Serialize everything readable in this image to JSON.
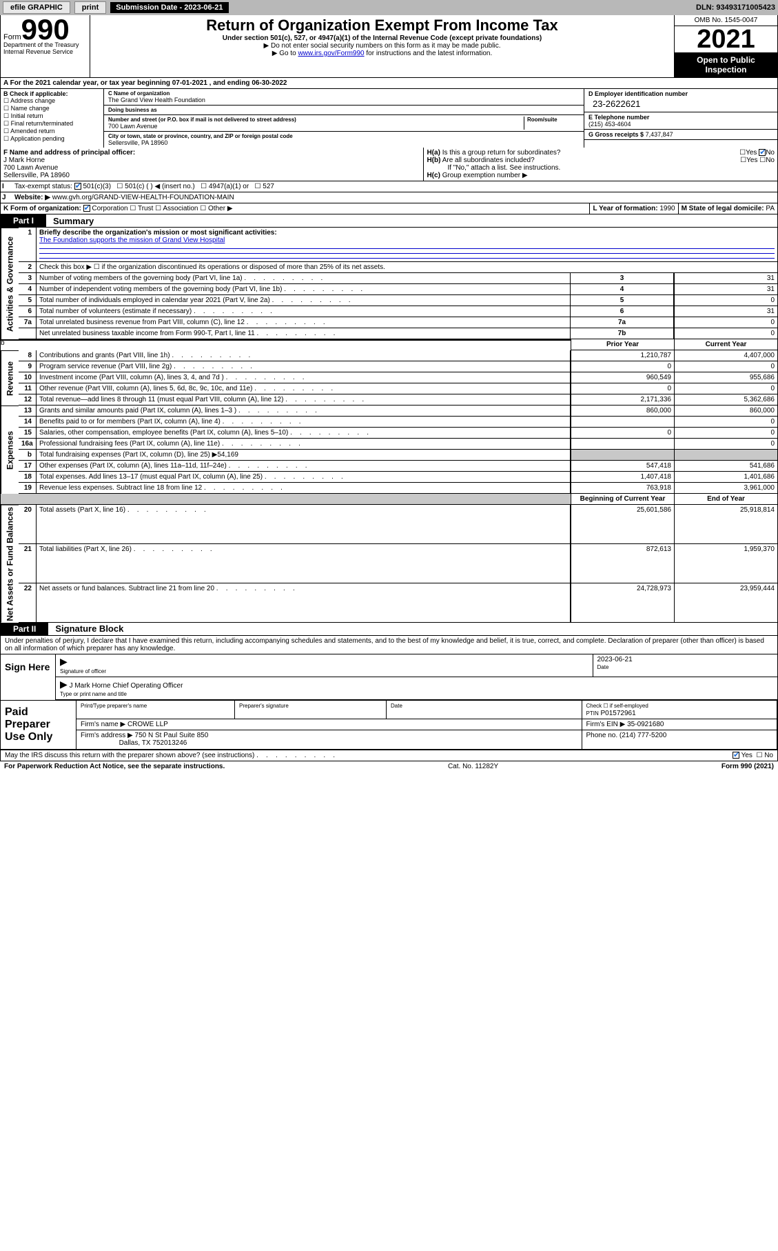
{
  "topbar": {
    "efile": "efile GRAPHIC",
    "print": "print",
    "subdate_label": "Submission Date - 2023-06-21",
    "dln": "DLN: 93493171005423"
  },
  "header": {
    "form_word": "Form",
    "form_num": "990",
    "title": "Return of Organization Exempt From Income Tax",
    "subtitle": "Under section 501(c), 527, or 4947(a)(1) of the Internal Revenue Code (except private foundations)",
    "note1": "▶ Do not enter social security numbers on this form as it may be made public.",
    "note2_pre": "▶ Go to ",
    "note2_link": "www.irs.gov/Form990",
    "note2_post": " for instructions and the latest information.",
    "dept": "Department of the Treasury Internal Revenue Service",
    "omb": "OMB No. 1545-0047",
    "year": "2021",
    "public": "Open to Public Inspection"
  },
  "rowA": "A For the 2021 calendar year, or tax year beginning 07-01-2021   , and ending 06-30-2022",
  "boxB": {
    "title": "B Check if applicable:",
    "items": [
      "Address change",
      "Name change",
      "Initial return",
      "Final return/terminated",
      "Amended return",
      "Application pending"
    ]
  },
  "boxC": {
    "name_lbl": "C Name of organization",
    "name": "The Grand View Health Foundation",
    "dba_lbl": "Doing business as",
    "dba": "",
    "street_lbl": "Number and street (or P.O. box if mail is not delivered to street address)",
    "room_lbl": "Room/suite",
    "street": "700 Lawn Avenue",
    "city_lbl": "City or town, state or province, country, and ZIP or foreign postal code",
    "city": "Sellersville, PA  18960"
  },
  "boxD": {
    "ein_lbl": "D Employer identification number",
    "ein": "23-2622621",
    "tel_lbl": "E Telephone number",
    "tel": "(215) 453-4604",
    "gross_lbl": "G Gross receipts $",
    "gross": "7,437,847"
  },
  "boxF": {
    "lbl": "F Name and address of principal officer:",
    "name": "J Mark Horne",
    "addr1": "700 Lawn Avenue",
    "addr2": "Sellersville, PA  18960"
  },
  "boxH": {
    "a": "Is this a group return for subordinates?",
    "b": "Are all subordinates included?",
    "b2": "If \"No,\" attach a list. See instructions.",
    "c": "Group exemption number ▶"
  },
  "boxI": {
    "lbl": "Tax-exempt status:",
    "opts": [
      "501(c)(3)",
      "501(c) (  ) ◀ (insert no.)",
      "4947(a)(1) or",
      "527"
    ]
  },
  "boxJ": {
    "lbl": "Website: ▶",
    "val": "www.gvh.org/GRAND-VIEW-HEALTH-FOUNDATION-MAIN"
  },
  "boxK": {
    "lbl": "K Form of organization:",
    "opts": [
      "Corporation",
      "Trust",
      "Association",
      "Other ▶"
    ]
  },
  "boxL": {
    "lbl": "L Year of formation:",
    "val": "1990"
  },
  "boxM": {
    "lbl": "M State of legal domicile:",
    "val": "PA"
  },
  "partI": {
    "tab": "Part I",
    "title": "Summary",
    "line1_lbl": "Briefly describe the organization's mission or most significant activities:",
    "line1_val": "The Foundation supports the mission of Grand View Hospital",
    "line2": "Check this box ▶ ☐  if the organization discontinued its operations or disposed of more than 25% of its net assets.",
    "rows_gov": [
      {
        "n": "3",
        "d": "Number of voting members of the governing body (Part VI, line 1a)",
        "box": "3",
        "v": "31"
      },
      {
        "n": "4",
        "d": "Number of independent voting members of the governing body (Part VI, line 1b)",
        "box": "4",
        "v": "31"
      },
      {
        "n": "5",
        "d": "Total number of individuals employed in calendar year 2021 (Part V, line 2a)",
        "box": "5",
        "v": "0"
      },
      {
        "n": "6",
        "d": "Total number of volunteers (estimate if necessary)",
        "box": "6",
        "v": "31"
      },
      {
        "n": "7a",
        "d": "Total unrelated business revenue from Part VIII, column (C), line 12",
        "box": "7a",
        "v": "0"
      },
      {
        "n": "",
        "d": "Net unrelated business taxable income from Form 990-T, Part I, line 11",
        "box": "7b",
        "v": "0"
      }
    ],
    "col_prior": "Prior Year",
    "col_curr": "Current Year",
    "rows_rev": [
      {
        "n": "8",
        "d": "Contributions and grants (Part VIII, line 1h)",
        "p": "1,210,787",
        "c": "4,407,000"
      },
      {
        "n": "9",
        "d": "Program service revenue (Part VIII, line 2g)",
        "p": "0",
        "c": "0"
      },
      {
        "n": "10",
        "d": "Investment income (Part VIII, column (A), lines 3, 4, and 7d )",
        "p": "960,549",
        "c": "955,686"
      },
      {
        "n": "11",
        "d": "Other revenue (Part VIII, column (A), lines 5, 6d, 8c, 9c, 10c, and 11e)",
        "p": "0",
        "c": "0"
      },
      {
        "n": "12",
        "d": "Total revenue—add lines 8 through 11 (must equal Part VIII, column (A), line 12)",
        "p": "2,171,336",
        "c": "5,362,686"
      }
    ],
    "rows_exp": [
      {
        "n": "13",
        "d": "Grants and similar amounts paid (Part IX, column (A), lines 1–3 )",
        "p": "860,000",
        "c": "860,000"
      },
      {
        "n": "14",
        "d": "Benefits paid to or for members (Part IX, column (A), line 4)",
        "p": "",
        "c": "0"
      },
      {
        "n": "15",
        "d": "Salaries, other compensation, employee benefits (Part IX, column (A), lines 5–10)",
        "p": "0",
        "c": "0"
      },
      {
        "n": "16a",
        "d": "Professional fundraising fees (Part IX, column (A), line 11e)",
        "p": "",
        "c": "0"
      },
      {
        "n": "b",
        "d": "Total fundraising expenses (Part IX, column (D), line 25) ▶54,169",
        "p": "",
        "c": "",
        "shade": true
      },
      {
        "n": "17",
        "d": "Other expenses (Part IX, column (A), lines 11a–11d, 11f–24e)",
        "p": "547,418",
        "c": "541,686"
      },
      {
        "n": "18",
        "d": "Total expenses. Add lines 13–17 (must equal Part IX, column (A), line 25)",
        "p": "1,407,418",
        "c": "1,401,686"
      },
      {
        "n": "19",
        "d": "Revenue less expenses. Subtract line 18 from line 12",
        "p": "763,918",
        "c": "3,961,000"
      }
    ],
    "col_beg": "Beginning of Current Year",
    "col_end": "End of Year",
    "rows_net": [
      {
        "n": "20",
        "d": "Total assets (Part X, line 16)",
        "p": "25,601,586",
        "c": "25,918,814"
      },
      {
        "n": "21",
        "d": "Total liabilities (Part X, line 26)",
        "p": "872,613",
        "c": "1,959,370"
      },
      {
        "n": "22",
        "d": "Net assets or fund balances. Subtract line 21 from line 20",
        "p": "24,728,973",
        "c": "23,959,444"
      }
    ],
    "side_gov": "Activities & Governance",
    "side_rev": "Revenue",
    "side_exp": "Expenses",
    "side_net": "Net Assets or Fund Balances"
  },
  "partII": {
    "tab": "Part II",
    "title": "Signature Block",
    "intro": "Under penalties of perjury, I declare that I have examined this return, including accompanying schedules and statements, and to the best of my knowledge and belief, it is true, correct, and complete. Declaration of preparer (other than officer) is based on all information of which preparer has any knowledge.",
    "sign_here": "Sign Here",
    "sig_off": "Signature of officer",
    "sig_date": "2023-06-21",
    "date_lbl": "Date",
    "officer": "J Mark Horne  Chief Operating Officer",
    "officer_lbl": "Type or print name and title",
    "paid": "Paid Preparer Use Only",
    "p_name_lbl": "Print/Type preparer's name",
    "p_sig_lbl": "Preparer's signature",
    "p_date_lbl": "Date",
    "p_check": "Check ☐ if self-employed",
    "ptin_lbl": "PTIN",
    "ptin": "P01572961",
    "firm_name_lbl": "Firm's name    ▶",
    "firm_name": "CROWE LLP",
    "firm_ein_lbl": "Firm's EIN ▶",
    "firm_ein": "35-0921680",
    "firm_addr_lbl": "Firm's address ▶",
    "firm_addr1": "750 N St Paul Suite 850",
    "firm_addr2": "Dallas, TX  752013246",
    "firm_phone_lbl": "Phone no.",
    "firm_phone": "(214) 777-5200",
    "may_irs": "May the IRS discuss this return with the preparer shown above? (see instructions)"
  },
  "footer": {
    "pra": "For Paperwork Reduction Act Notice, see the separate instructions.",
    "cat": "Cat. No. 11282Y",
    "form": "Form 990 (2021)"
  },
  "yn": {
    "yes": "Yes",
    "no": "No"
  }
}
